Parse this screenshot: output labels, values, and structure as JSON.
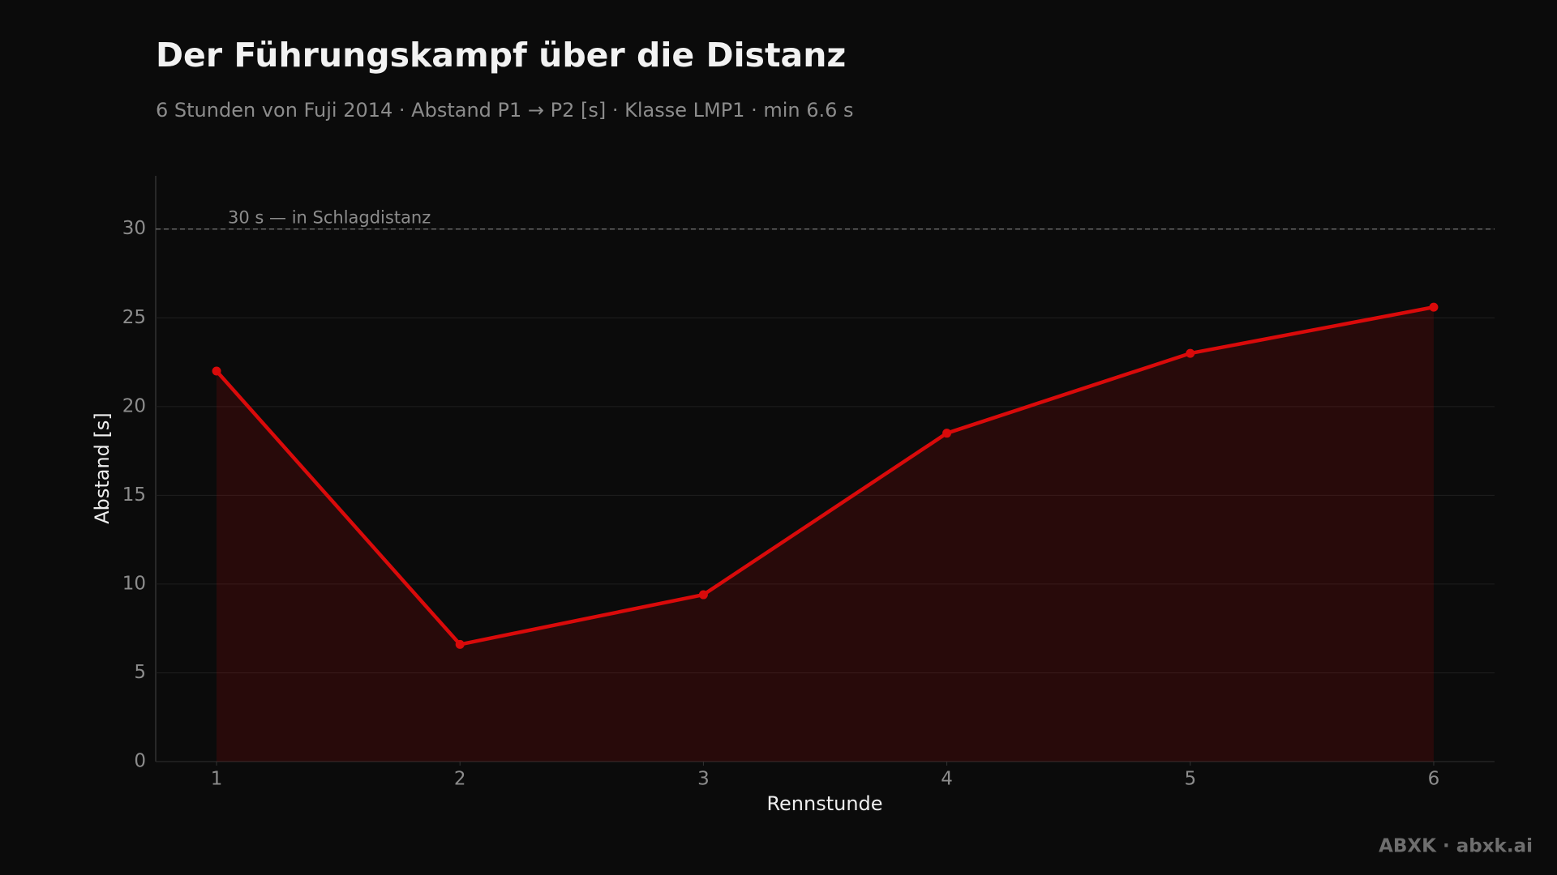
{
  "chart_data": {
    "type": "line",
    "title": "Der Führungskampf über die Distanz",
    "subtitle": "6 Stunden von Fuji 2014 · Abstand P1 → P2 [s] · Klasse LMP1 · min 6.6 s",
    "x_label": "Rennstunde",
    "y_label": "Abstand [s]",
    "x": [
      1,
      2,
      3,
      4,
      5,
      6
    ],
    "values": [
      22.0,
      6.6,
      9.4,
      18.5,
      23.0,
      25.6
    ],
    "color": "#d90a0a",
    "area": true,
    "xlim": [
      0.75,
      6.25
    ],
    "xticks": [
      1,
      2,
      3,
      4,
      5,
      6
    ],
    "ylim": [
      0,
      33
    ],
    "yticks": [
      0,
      5,
      10,
      15,
      20,
      25,
      30
    ],
    "grid": true,
    "reference_line": {
      "value": 30,
      "label": "30 s — in Schlagdistanz"
    }
  },
  "footer": "ABXK · abxk.ai"
}
